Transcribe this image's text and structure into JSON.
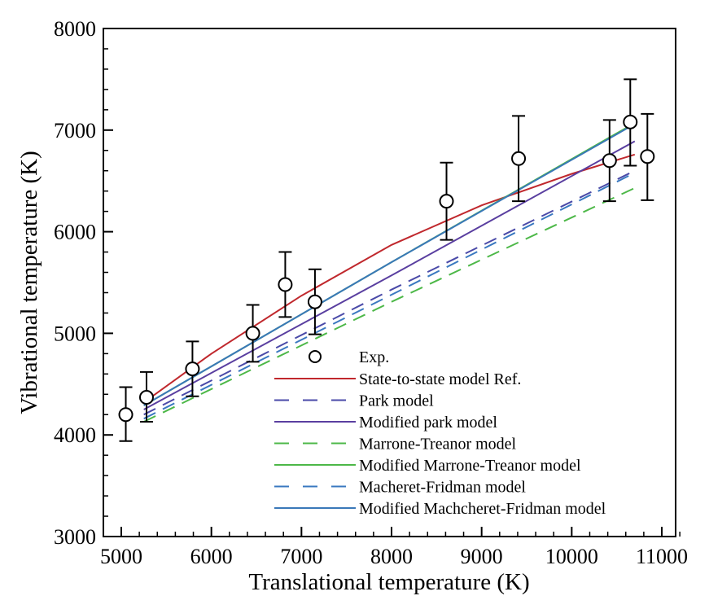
{
  "chart_data": {
    "type": "line",
    "xlabel": "Translational temperature (K)",
    "ylabel": "Vibrational temperature (K)",
    "xlim": [
      4800,
      11200
    ],
    "ylim": [
      3000,
      8000
    ],
    "xticks": [
      "5000",
      "6000",
      "7000",
      "8000",
      "9000",
      "10000",
      "11000"
    ],
    "yticks": [
      "3000",
      "4000",
      "5000",
      "6000",
      "7000",
      "8000"
    ],
    "grid": false,
    "legend_position": "bottom-right",
    "experiment": {
      "name": "Exp.",
      "points": [
        {
          "x": 5050,
          "y": 4200,
          "lo": 3940,
          "hi": 4470
        },
        {
          "x": 5280,
          "y": 4370,
          "lo": 4130,
          "hi": 4620
        },
        {
          "x": 5790,
          "y": 4650,
          "lo": 4380,
          "hi": 4920
        },
        {
          "x": 6460,
          "y": 5000,
          "lo": 4720,
          "hi": 5280
        },
        {
          "x": 6820,
          "y": 5480,
          "lo": 5160,
          "hi": 5800
        },
        {
          "x": 7150,
          "y": 5310,
          "lo": 4990,
          "hi": 5630
        },
        {
          "x": 8610,
          "y": 6300,
          "lo": 5920,
          "hi": 6680
        },
        {
          "x": 9410,
          "y": 6720,
          "lo": 6300,
          "hi": 7140
        },
        {
          "x": 10420,
          "y": 6700,
          "lo": 6300,
          "hi": 7100
        },
        {
          "x": 10650,
          "y": 7080,
          "lo": 6650,
          "hi": 7500
        },
        {
          "x": 10840,
          "y": 6740,
          "lo": 6310,
          "hi": 7160
        }
      ]
    },
    "series": [
      {
        "name": "State-to-state model Ref.",
        "color": "#c0282d",
        "dashed": false,
        "points": [
          [
            5250,
            4320
          ],
          [
            6000,
            4800
          ],
          [
            7000,
            5370
          ],
          [
            8000,
            5870
          ],
          [
            9000,
            6260
          ],
          [
            10000,
            6570
          ],
          [
            10700,
            6760
          ]
        ]
      },
      {
        "name": "Park model",
        "color": "#4a4aa8",
        "dashed": true,
        "points": [
          [
            5250,
            4200
          ],
          [
            8000,
            5430
          ],
          [
            10700,
            6600
          ]
        ]
      },
      {
        "name": "Modified park model",
        "color": "#5a3fa0",
        "dashed": false,
        "points": [
          [
            5250,
            4250
          ],
          [
            8000,
            5570
          ],
          [
            10700,
            6890
          ]
        ]
      },
      {
        "name": "Marrone-Treanor model",
        "color": "#4db848",
        "dashed": true,
        "points": [
          [
            5250,
            4130
          ],
          [
            8000,
            5310
          ],
          [
            10700,
            6430
          ]
        ]
      },
      {
        "name": "Modified Marrone-Treanor model",
        "color": "#4db848",
        "dashed": false,
        "points": [
          [
            5250,
            4290
          ],
          [
            8000,
            5700
          ],
          [
            10700,
            7070
          ]
        ]
      },
      {
        "name": "Macheret-Fridman model",
        "color": "#3a78c0",
        "dashed": true,
        "points": [
          [
            5250,
            4160
          ],
          [
            8000,
            5380
          ],
          [
            10700,
            6580
          ]
        ]
      },
      {
        "name": "Modified Machcheret-Fridman model",
        "color": "#3a78b8",
        "dashed": false,
        "points": [
          [
            5250,
            4290
          ],
          [
            8000,
            5700
          ],
          [
            10700,
            7060
          ]
        ]
      }
    ]
  }
}
